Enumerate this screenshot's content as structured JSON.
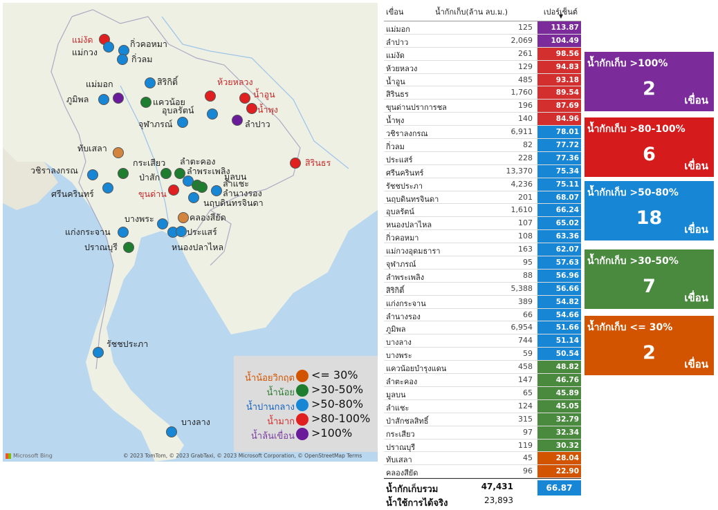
{
  "map": {
    "credits": "© 2023 TomTom, © 2023 GrabTaxi, © 2023 Microsoft Corporation, © OpenStreetMap  Terms",
    "bing_label": "Microsoft Bing",
    "dams": [
      {
        "name": "แม่งัด",
        "cat": "red"
      },
      {
        "name": "แม่กวง",
        "cat": "blue"
      },
      {
        "name": "กิ่วคอหมา",
        "cat": "blue"
      },
      {
        "name": "กิ่วลม",
        "cat": "blue"
      },
      {
        "name": "สิริกิติ์",
        "cat": "blue"
      },
      {
        "name": "ห้วยหลวง",
        "cat": "red"
      },
      {
        "name": "แม่มอก",
        "cat": "purple"
      },
      {
        "name": "ภูมิพล",
        "cat": "blue"
      },
      {
        "name": "แควน้อย",
        "cat": "green"
      },
      {
        "name": "น้ำอูน",
        "cat": "red"
      },
      {
        "name": "น้ำพุง",
        "cat": "red"
      },
      {
        "name": "อุบลรัตน์",
        "cat": "blue"
      },
      {
        "name": "จุฬาภรณ์",
        "cat": "blue"
      },
      {
        "name": "ลำปาว",
        "cat": "purple"
      },
      {
        "name": "ทับเสลา",
        "cat": "orange"
      },
      {
        "name": "กระเสียว",
        "cat": "green"
      },
      {
        "name": "วชิราลงกรณ",
        "cat": "blue"
      },
      {
        "name": "ศรีนครินทร์",
        "cat": "blue"
      },
      {
        "name": "ป่าสัก",
        "cat": "green"
      },
      {
        "name": "ลำตะคอง",
        "cat": "green"
      },
      {
        "name": "ลำพระเพลิง",
        "cat": "blue"
      },
      {
        "name": "มูลบน",
        "cat": "green"
      },
      {
        "name": "ลำแชะ",
        "cat": "green"
      },
      {
        "name": "ลำนางรอง",
        "cat": "blue"
      },
      {
        "name": "ขุนด่าน",
        "cat": "red"
      },
      {
        "name": "นฤบดินทรจินดา",
        "cat": "blue"
      },
      {
        "name": "สิรินธร",
        "cat": "red"
      },
      {
        "name": "บางพระ",
        "cat": "blue"
      },
      {
        "name": "คลองสียัด",
        "cat": "orange"
      },
      {
        "name": "ประแสร์",
        "cat": "blue"
      },
      {
        "name": "หนองปลาไหล",
        "cat": "blue"
      },
      {
        "name": "แก่งกระจาน",
        "cat": "blue"
      },
      {
        "name": "ปราณบุรี",
        "cat": "green"
      },
      {
        "name": "รัชชประภา",
        "cat": "blue"
      },
      {
        "name": "บางลาง",
        "cat": "blue"
      }
    ]
  },
  "legend": [
    {
      "name": "น้ำน้อยวิกฤต",
      "range": "<= 30%",
      "color": "#d35400",
      "text_color": "#d35400"
    },
    {
      "name": "น้ำน้อย",
      "range": ">30-50%",
      "color": "#1e7d2e",
      "text_color": "#2e7d32"
    },
    {
      "name": "น้ำปานกลาง",
      "range": ">50-80%",
      "color": "#1786d5",
      "text_color": "#1565c0"
    },
    {
      "name": "น้ำมาก",
      "range": ">80-100%",
      "color": "#e02020",
      "text_color": "#d32f2f"
    },
    {
      "name": "น้ำล้นเขื่อน",
      "range": ">100%",
      "color": "#6a1b9a",
      "text_color": "#7b3fa0"
    }
  ],
  "table": {
    "col_name": "เขื่อน",
    "col_volume": "น้ำกักเก็บ(ล้าน ลบ.ม.)",
    "col_percent": "เปอร์เซ็นต์",
    "rows": [
      {
        "name": "แม่มอก",
        "volume": "125",
        "pct": "113.87",
        "color": "#7b2c9a"
      },
      {
        "name": "ลำปาว",
        "volume": "2,069",
        "pct": "104.49",
        "color": "#7b2c9a"
      },
      {
        "name": "แม่งัด",
        "volume": "261",
        "pct": "98.56",
        "color": "#d32f2f"
      },
      {
        "name": "ห้วยหลวง",
        "volume": "129",
        "pct": "94.83",
        "color": "#d32f2f"
      },
      {
        "name": "น้ำอูน",
        "volume": "485",
        "pct": "93.18",
        "color": "#d32f2f"
      },
      {
        "name": "สิรินธร",
        "volume": "1,760",
        "pct": "89.54",
        "color": "#d32f2f"
      },
      {
        "name": "ขุนด่านปราการชล",
        "volume": "196",
        "pct": "87.69",
        "color": "#d32f2f"
      },
      {
        "name": "น้ำพุง",
        "volume": "140",
        "pct": "84.96",
        "color": "#d32f2f"
      },
      {
        "name": "วชิราลงกรณ",
        "volume": "6,911",
        "pct": "78.01",
        "color": "#1786d5"
      },
      {
        "name": "กิ่วลม",
        "volume": "82",
        "pct": "77.72",
        "color": "#1786d5"
      },
      {
        "name": "ประแสร์",
        "volume": "228",
        "pct": "77.36",
        "color": "#1786d5"
      },
      {
        "name": "ศรีนครินทร์",
        "volume": "13,370",
        "pct": "75.34",
        "color": "#1786d5"
      },
      {
        "name": "รัชชประภา",
        "volume": "4,236",
        "pct": "75.11",
        "color": "#1786d5"
      },
      {
        "name": "นฤบดินทรจินดา",
        "volume": "201",
        "pct": "68.07",
        "color": "#1786d5"
      },
      {
        "name": "อุบลรัตน์",
        "volume": "1,610",
        "pct": "66.24",
        "color": "#1786d5"
      },
      {
        "name": "หนองปลาไหล",
        "volume": "107",
        "pct": "65.02",
        "color": "#1786d5"
      },
      {
        "name": "กิ่วคอหมา",
        "volume": "108",
        "pct": "63.36",
        "color": "#1786d5"
      },
      {
        "name": "แม่กวงอุดมธารา",
        "volume": "163",
        "pct": "62.07",
        "color": "#1786d5"
      },
      {
        "name": "จุฬาภรณ์",
        "volume": "95",
        "pct": "57.63",
        "color": "#1786d5"
      },
      {
        "name": "ลำพระเพลิง",
        "volume": "88",
        "pct": "56.96",
        "color": "#1786d5"
      },
      {
        "name": "สิริกิติ์",
        "volume": "5,388",
        "pct": "56.66",
        "color": "#1786d5"
      },
      {
        "name": "แก่งกระจาน",
        "volume": "389",
        "pct": "54.82",
        "color": "#1786d5"
      },
      {
        "name": "ลำนางรอง",
        "volume": "66",
        "pct": "54.66",
        "color": "#1786d5"
      },
      {
        "name": "ภูมิพล",
        "volume": "6,954",
        "pct": "51.66",
        "color": "#1786d5"
      },
      {
        "name": "บางลาง",
        "volume": "744",
        "pct": "51.14",
        "color": "#1786d5"
      },
      {
        "name": "บางพระ",
        "volume": "59",
        "pct": "50.54",
        "color": "#1786d5"
      },
      {
        "name": "แควน้อยบำรุงแดน",
        "volume": "458",
        "pct": "48.82",
        "color": "#4a8a3e"
      },
      {
        "name": "ลำตะคอง",
        "volume": "147",
        "pct": "46.76",
        "color": "#4a8a3e"
      },
      {
        "name": "มูลบน",
        "volume": "65",
        "pct": "45.89",
        "color": "#4a8a3e"
      },
      {
        "name": "ลำแชะ",
        "volume": "124",
        "pct": "45.05",
        "color": "#4a8a3e"
      },
      {
        "name": "ป่าสักชลสิทธิ์",
        "volume": "315",
        "pct": "32.79",
        "color": "#4a8a3e"
      },
      {
        "name": "กระเสียว",
        "volume": "97",
        "pct": "32.34",
        "color": "#4a8a3e"
      },
      {
        "name": "ปราณบุรี",
        "volume": "119",
        "pct": "30.32",
        "color": "#4a8a3e"
      },
      {
        "name": "ทับเสลา",
        "volume": "45",
        "pct": "28.04",
        "color": "#d35400"
      },
      {
        "name": "คลองสียัด",
        "volume": "96",
        "pct": "22.90",
        "color": "#d35400"
      }
    ],
    "total_label": "น้ำกักเก็บรวม",
    "total_volume": "47,431",
    "total_pct": "66.87",
    "usable_label": "น้ำใช้การได้จริง",
    "usable_volume": "23,893"
  },
  "cards": [
    {
      "title": "น้ำกักเก็บ >100%",
      "count": "2",
      "unit": "เขื่อน",
      "color": "#7b2c9a"
    },
    {
      "title": "น้ำกักเก็บ >80-100%",
      "count": "6",
      "unit": "เขื่อน",
      "color": "#d51b1b"
    },
    {
      "title": "น้ำกักเก็บ >50-80%",
      "count": "18",
      "unit": "เขื่อน",
      "color": "#1786d5"
    },
    {
      "title": "น้ำกักเก็บ >30-50%",
      "count": "7",
      "unit": "เขื่อน",
      "color": "#4a8a3e"
    },
    {
      "title": "น้ำกักเก็บ <= 30%",
      "count": "2",
      "unit": "เขื่อน",
      "color": "#d35400"
    }
  ]
}
